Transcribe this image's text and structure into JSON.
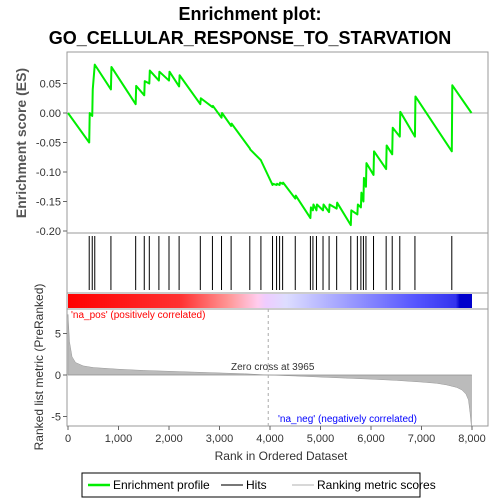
{
  "chart_data": {
    "type": "line",
    "title_line1": "Enrichment plot:",
    "title_line2": "GO_CELLULAR_RESPONSE_TO_STARVATION",
    "ylabel_top": "Enrichment score (ES)",
    "ylabel_bottom": "Ranked list metric (PreRanked)",
    "xlabel": "Rank in Ordered Dataset",
    "xlim": [
      0,
      8000
    ],
    "x_ticks": [
      0,
      1000,
      2000,
      3000,
      4000,
      5000,
      6000,
      7000,
      8000
    ],
    "x_tick_labels": [
      "0",
      "1,000",
      "2,000",
      "3,000",
      "4,000",
      "5,000",
      "6,000",
      "7,000",
      "8,000"
    ],
    "es_ylim": [
      -0.2,
      0.1
    ],
    "es_ticks": [
      0.05,
      0.0,
      -0.05,
      -0.1,
      -0.15,
      -0.2
    ],
    "es_tick_labels": [
      "0.05",
      "0.00",
      "-0.05",
      "-0.10",
      "-0.15",
      "-0.20"
    ],
    "metric_ylim": [
      -6.5,
      7.5
    ],
    "metric_ticks": [
      5,
      0,
      -5
    ],
    "metric_tick_labels": [
      "5",
      "0",
      "-5"
    ],
    "es_line_color": "#00ee00",
    "hit_color": "#000000",
    "metric_fill_color": "#bbbbbb",
    "pos_label_color": "#ff0000",
    "neg_label_color": "#0000ff",
    "enrichment_profile": {
      "x": [
        0,
        420,
        430,
        480,
        490,
        530,
        850,
        860,
        1340,
        1350,
        1510,
        1520,
        1610,
        1620,
        1800,
        1810,
        2000,
        2010,
        2200,
        2210,
        2620,
        2630,
        2860,
        2870,
        3040,
        3050,
        3230,
        3240,
        3600,
        3610,
        3820,
        3830,
        4050,
        4060,
        4130,
        4140,
        4190,
        4200,
        4250,
        4260,
        4500,
        4510,
        4800,
        4810,
        4850,
        4860,
        4920,
        4930,
        5050,
        5060,
        5170,
        5180,
        5320,
        5330,
        5600,
        5610,
        5730,
        5740,
        5800,
        5810,
        5850,
        5860,
        5900,
        5910,
        6050,
        6060,
        6300,
        6310,
        6420,
        6430,
        6570,
        6580,
        6870,
        6880,
        7600,
        7610,
        7990
      ],
      "y": [
        0.0,
        -0.05,
        0.0,
        -0.005,
        0.04,
        0.082,
        0.04,
        0.078,
        0.015,
        0.046,
        0.03,
        0.054,
        0.05,
        0.072,
        0.055,
        0.07,
        0.055,
        0.07,
        0.045,
        0.064,
        0.015,
        0.025,
        0.01,
        0.012,
        -0.008,
        0.0,
        -0.022,
        -0.018,
        -0.06,
        -0.062,
        -0.08,
        -0.082,
        -0.122,
        -0.12,
        -0.122,
        -0.12,
        -0.122,
        -0.118,
        -0.12,
        -0.118,
        -0.145,
        -0.14,
        -0.178,
        -0.16,
        -0.165,
        -0.155,
        -0.165,
        -0.155,
        -0.165,
        -0.155,
        -0.168,
        -0.155,
        -0.162,
        -0.152,
        -0.19,
        -0.165,
        -0.172,
        -0.155,
        -0.16,
        -0.135,
        -0.15,
        -0.11,
        -0.125,
        -0.085,
        -0.105,
        -0.065,
        -0.095,
        -0.055,
        -0.07,
        -0.025,
        -0.04,
        0.002,
        -0.04,
        0.028,
        -0.065,
        0.047,
        0.0
      ]
    },
    "hits": [
      420,
      480,
      530,
      850,
      1340,
      1510,
      1610,
      1800,
      2000,
      2200,
      2620,
      2860,
      3040,
      3230,
      3600,
      3820,
      4050,
      4130,
      4190,
      4250,
      4500,
      4800,
      4850,
      4920,
      5050,
      5170,
      5320,
      5600,
      5730,
      5800,
      5850,
      5900,
      6050,
      6300,
      6420,
      6570,
      6870,
      7600
    ],
    "ranked_metric": {
      "x": [
        0,
        30,
        80,
        150,
        300,
        500,
        1000,
        1500,
        2000,
        2500,
        3000,
        3500,
        3965,
        4500,
        5000,
        5500,
        6000,
        6500,
        7000,
        7300,
        7500,
        7700,
        7800,
        7880,
        7930,
        7960,
        7990
      ],
      "y": [
        7.3,
        4.0,
        2.2,
        1.5,
        1.1,
        0.9,
        0.7,
        0.55,
        0.45,
        0.35,
        0.25,
        0.15,
        0.0,
        -0.12,
        -0.25,
        -0.38,
        -0.5,
        -0.65,
        -0.85,
        -1.0,
        -1.2,
        -1.5,
        -1.8,
        -2.3,
        -3.0,
        -4.5,
        -6.3
      ]
    },
    "zero_cross_rank": 3965,
    "zero_cross_label": "Zero cross at 3965",
    "pos_label": "'na_pos' (positively correlated)",
    "neg_label": "'na_neg' (negatively correlated)",
    "legend": [
      {
        "label": "Enrichment profile",
        "color": "#00ee00"
      },
      {
        "label": "Hits",
        "color": "#777777"
      },
      {
        "label": "Ranking metric scores",
        "color": "#cccccc"
      }
    ],
    "grid": false
  }
}
